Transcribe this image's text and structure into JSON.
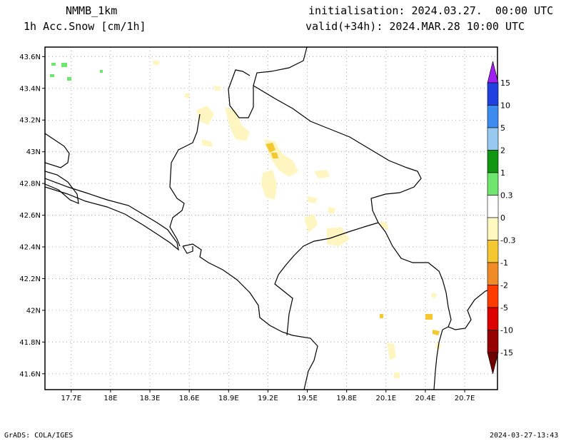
{
  "header": {
    "model": "NMMB_1km",
    "field": "1h Acc.Snow [cm/1h]",
    "init": "initialisation: 2024.03.27.  00:00 UTC",
    "valid": "valid(+34h): 2024.MAR.28 10:00 UTC"
  },
  "footer": {
    "left": "GrADS: COLA/IGES",
    "right": "2024-03-27-13:43"
  },
  "map": {
    "lat_labels": [
      "43.6N",
      "43.4N",
      "43.2N",
      "43N",
      "42.8N",
      "42.6N",
      "42.4N",
      "42.2N",
      "42N",
      "41.8N",
      "41.6N"
    ],
    "lon_labels": [
      "17.7E",
      "18E",
      "18.3E",
      "18.6E",
      "18.9E",
      "19.2E",
      "19.5E",
      "19.8E",
      "20.1E",
      "20.4E",
      "20.7E"
    ],
    "extent": {
      "lon": [
        17.5,
        20.95
      ],
      "lat": [
        41.5,
        43.66
      ]
    }
  },
  "colorbar": {
    "labels": [
      "15",
      "10",
      "5",
      "2",
      "1",
      "0.3",
      "0",
      "-0.3",
      "-1",
      "-2",
      "-5",
      "-10",
      "-15"
    ],
    "colors": [
      "#a020f0",
      "#2040e0",
      "#3c8cf0",
      "#96c8f0",
      "#109610",
      "#6ee66e",
      "#ffffff",
      "#fff8c0",
      "#f5c832",
      "#f08c28",
      "#ff3c00",
      "#dc0000",
      "#960000",
      "#6e0000"
    ]
  },
  "snow_colors": {
    "light": "#fff5c0",
    "medium": "#f5c832",
    "green": "#6ee66e"
  }
}
